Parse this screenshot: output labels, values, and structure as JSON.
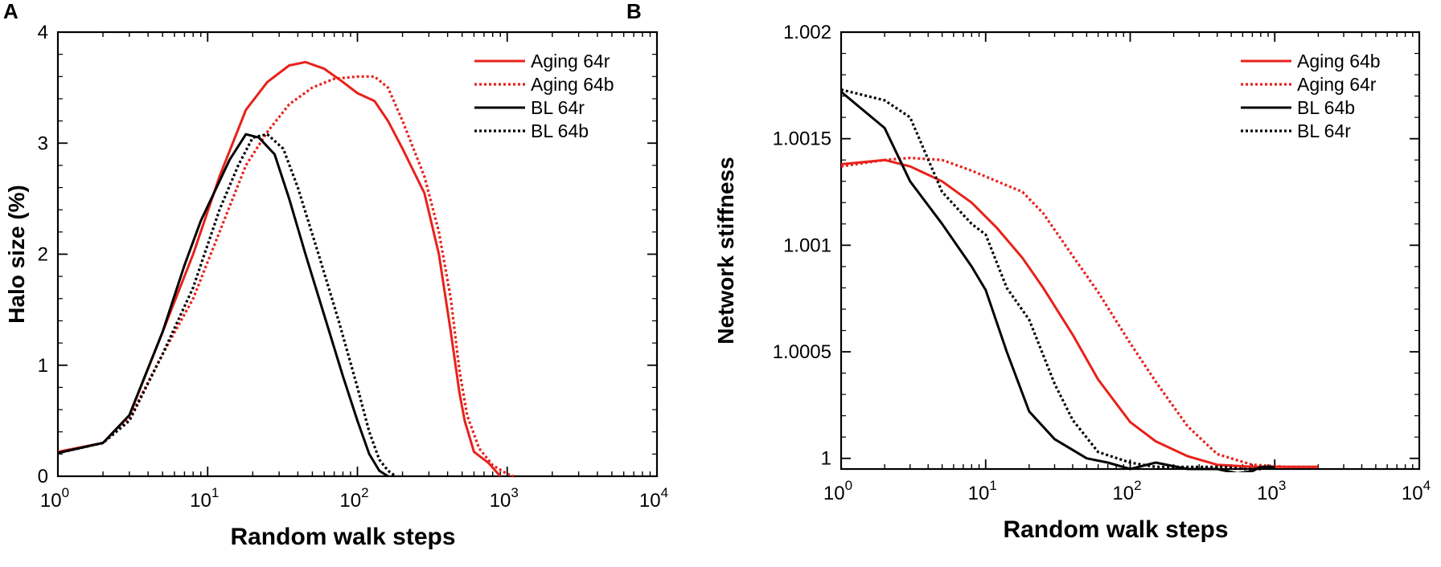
{
  "chart_data": [
    {
      "panel": "A",
      "type": "line",
      "xscale": "log",
      "xlim": [
        1,
        10000
      ],
      "ylim": [
        0,
        4
      ],
      "xlabel": "Random walk steps",
      "ylabel": "Halo size (%)",
      "x_ticks": [
        {
          "value": 1,
          "base": "10",
          "exp": "0"
        },
        {
          "value": 10,
          "base": "10",
          "exp": "1"
        },
        {
          "value": 100,
          "base": "10",
          "exp": "2"
        },
        {
          "value": 1000,
          "base": "10",
          "exp": "3"
        },
        {
          "value": 10000,
          "base": "10",
          "exp": "4"
        }
      ],
      "y_ticks": [
        {
          "value": 0,
          "label": "0"
        },
        {
          "value": 1,
          "label": "1"
        },
        {
          "value": 2,
          "label": "2"
        },
        {
          "value": 3,
          "label": "3"
        },
        {
          "value": 4,
          "label": "4"
        }
      ],
      "legend_position": "top-right",
      "series": [
        {
          "name": "Aging 64r",
          "color": "#e8211b",
          "style": "solid",
          "x": [
            1,
            2,
            3,
            5,
            8,
            12,
            18,
            25,
            35,
            45,
            60,
            80,
            100,
            130,
            160,
            200,
            280,
            350,
            420,
            480,
            520,
            600,
            750,
            900
          ],
          "y": [
            0.22,
            0.3,
            0.55,
            1.3,
            2.0,
            2.7,
            3.3,
            3.55,
            3.7,
            3.73,
            3.67,
            3.55,
            3.45,
            3.38,
            3.2,
            2.95,
            2.55,
            2.0,
            1.3,
            0.75,
            0.5,
            0.22,
            0.12,
            0.0
          ]
        },
        {
          "name": "Aging 64b",
          "color": "#e8211b",
          "style": "dotted",
          "x": [
            1,
            2,
            3,
            5,
            8,
            12,
            18,
            25,
            35,
            50,
            70,
            100,
            130,
            160,
            200,
            280,
            350,
            420,
            480,
            540,
            650,
            800,
            1000,
            1100
          ],
          "y": [
            0.21,
            0.3,
            0.52,
            1.1,
            1.6,
            2.2,
            2.8,
            3.1,
            3.35,
            3.5,
            3.58,
            3.6,
            3.6,
            3.5,
            3.2,
            2.7,
            2.2,
            1.6,
            0.95,
            0.55,
            0.25,
            0.1,
            0.02,
            0.0
          ]
        },
        {
          "name": "BL 64r",
          "color": "#000000",
          "style": "solid",
          "x": [
            1,
            2,
            3,
            5,
            7,
            9,
            11,
            14,
            18,
            22,
            28,
            35,
            45,
            60,
            80,
            100,
            120,
            140,
            160
          ],
          "y": [
            0.21,
            0.3,
            0.55,
            1.3,
            1.9,
            2.3,
            2.55,
            2.85,
            3.08,
            3.05,
            2.9,
            2.5,
            2.0,
            1.45,
            0.9,
            0.5,
            0.2,
            0.05,
            0.0
          ]
        },
        {
          "name": "BL 64b",
          "color": "#000000",
          "style": "dotted",
          "x": [
            1,
            2,
            3,
            5,
            8,
            12,
            16,
            20,
            25,
            32,
            40,
            55,
            75,
            100,
            120,
            140,
            160,
            180
          ],
          "y": [
            0.21,
            0.3,
            0.5,
            1.1,
            1.7,
            2.4,
            2.8,
            3.05,
            3.08,
            2.95,
            2.6,
            2.0,
            1.4,
            0.8,
            0.4,
            0.15,
            0.05,
            0.0
          ]
        }
      ]
    },
    {
      "panel": "B",
      "type": "line",
      "xscale": "log",
      "xlim": [
        1,
        10000
      ],
      "ylim": [
        0.99995,
        1.002
      ],
      "xlabel": "Random walk steps",
      "ylabel": "Network stiffness",
      "x_ticks": [
        {
          "value": 1,
          "base": "10",
          "exp": "0"
        },
        {
          "value": 10,
          "base": "10",
          "exp": "1"
        },
        {
          "value": 100,
          "base": "10",
          "exp": "2"
        },
        {
          "value": 1000,
          "base": "10",
          "exp": "3"
        },
        {
          "value": 10000,
          "base": "10",
          "exp": "4"
        }
      ],
      "y_ticks": [
        {
          "value": 1.0,
          "label": "1"
        },
        {
          "value": 1.0005,
          "label": "1.0005"
        },
        {
          "value": 1.001,
          "label": "1.001"
        },
        {
          "value": 1.0015,
          "label": "1.0015"
        },
        {
          "value": 1.002,
          "label": "1.002"
        }
      ],
      "legend_position": "top-right",
      "series": [
        {
          "name": "Aging 64b",
          "color": "#e8211b",
          "style": "solid",
          "x": [
            1,
            2,
            3,
            5,
            8,
            12,
            18,
            25,
            40,
            60,
            100,
            150,
            250,
            400,
            700,
            1200,
            2000
          ],
          "y": [
            1.00138,
            1.0014,
            1.00137,
            1.0013,
            1.0012,
            1.00108,
            1.00094,
            1.0008,
            1.00058,
            1.00037,
            1.00017,
            1.00008,
            1.00001,
            0.99997,
            0.99996,
            0.99996,
            0.99996
          ]
        },
        {
          "name": "Aging 64r",
          "color": "#e8211b",
          "style": "dotted",
          "x": [
            1,
            2,
            3,
            5,
            8,
            12,
            18,
            25,
            40,
            60,
            100,
            150,
            250,
            400,
            700,
            1200,
            2000
          ],
          "y": [
            1.00137,
            1.0014,
            1.00141,
            1.0014,
            1.00135,
            1.0013,
            1.00125,
            1.00115,
            1.00095,
            1.00078,
            1.00054,
            1.00036,
            1.00015,
            1.00002,
            0.99997,
            0.99996,
            0.99996
          ]
        },
        {
          "name": "BL 64b",
          "color": "#000000",
          "style": "solid",
          "x": [
            1,
            2,
            3,
            5,
            8,
            10,
            14,
            20,
            30,
            50,
            70,
            100,
            150,
            250,
            400,
            550,
            700,
            800,
            1000
          ],
          "y": [
            1.00172,
            1.00155,
            1.0013,
            1.0011,
            1.0009,
            1.00079,
            1.0005,
            1.00022,
            1.00009,
            1.0,
            0.99998,
            0.99995,
            0.99998,
            0.99995,
            0.99995,
            0.99993,
            0.99994,
            0.99996,
            0.99996
          ]
        },
        {
          "name": "BL 64r",
          "color": "#000000",
          "style": "dotted",
          "x": [
            1,
            2,
            3,
            5,
            8,
            10,
            14,
            20,
            30,
            40,
            60,
            100,
            150,
            200,
            300,
            450,
            600,
            800,
            1000
          ],
          "y": [
            1.00173,
            1.00168,
            1.0016,
            1.00125,
            1.0011,
            1.00105,
            1.0008,
            1.00065,
            1.00035,
            1.00018,
            1.00003,
            0.99998,
            0.99996,
            0.99996,
            0.99996,
            0.99996,
            0.99995,
            0.99995,
            0.99996
          ]
        }
      ]
    }
  ],
  "panels": {
    "a_label": "A",
    "b_label": "B"
  }
}
